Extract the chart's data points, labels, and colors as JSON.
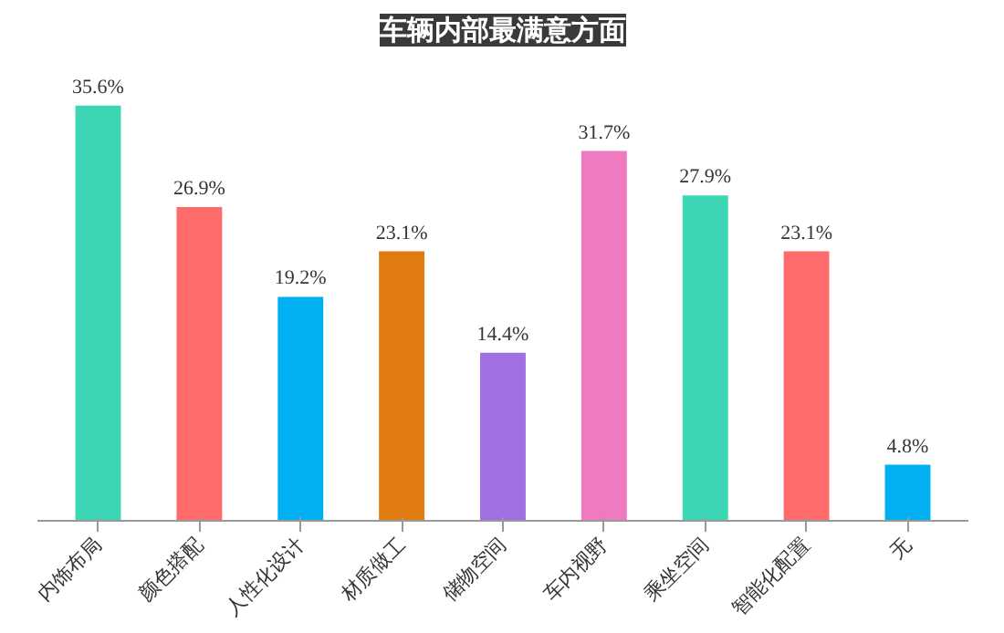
{
  "chart_data": {
    "type": "bar",
    "title": "车辆内部最满意方面",
    "categories": [
      "内饰布局",
      "颜色搭配",
      "人性化设计",
      "材质做工",
      "储物空间",
      "车内视野",
      "乘坐空间",
      "智能化配置",
      "无"
    ],
    "values": [
      35.6,
      26.9,
      19.2,
      23.1,
      14.4,
      31.7,
      27.9,
      23.1,
      4.8
    ],
    "value_labels": [
      "35.6%",
      "26.9%",
      "19.2%",
      "23.1%",
      "14.4%",
      "31.7%",
      "27.9%",
      "23.1%",
      "4.8%"
    ],
    "colors": [
      "#3dd6b5",
      "#ff6b6b",
      "#00b0f0",
      "#e07b10",
      "#a070e0",
      "#f07ac0",
      "#3dd6b5",
      "#ff6b6b",
      "#00b0f0"
    ],
    "grid": false
  }
}
